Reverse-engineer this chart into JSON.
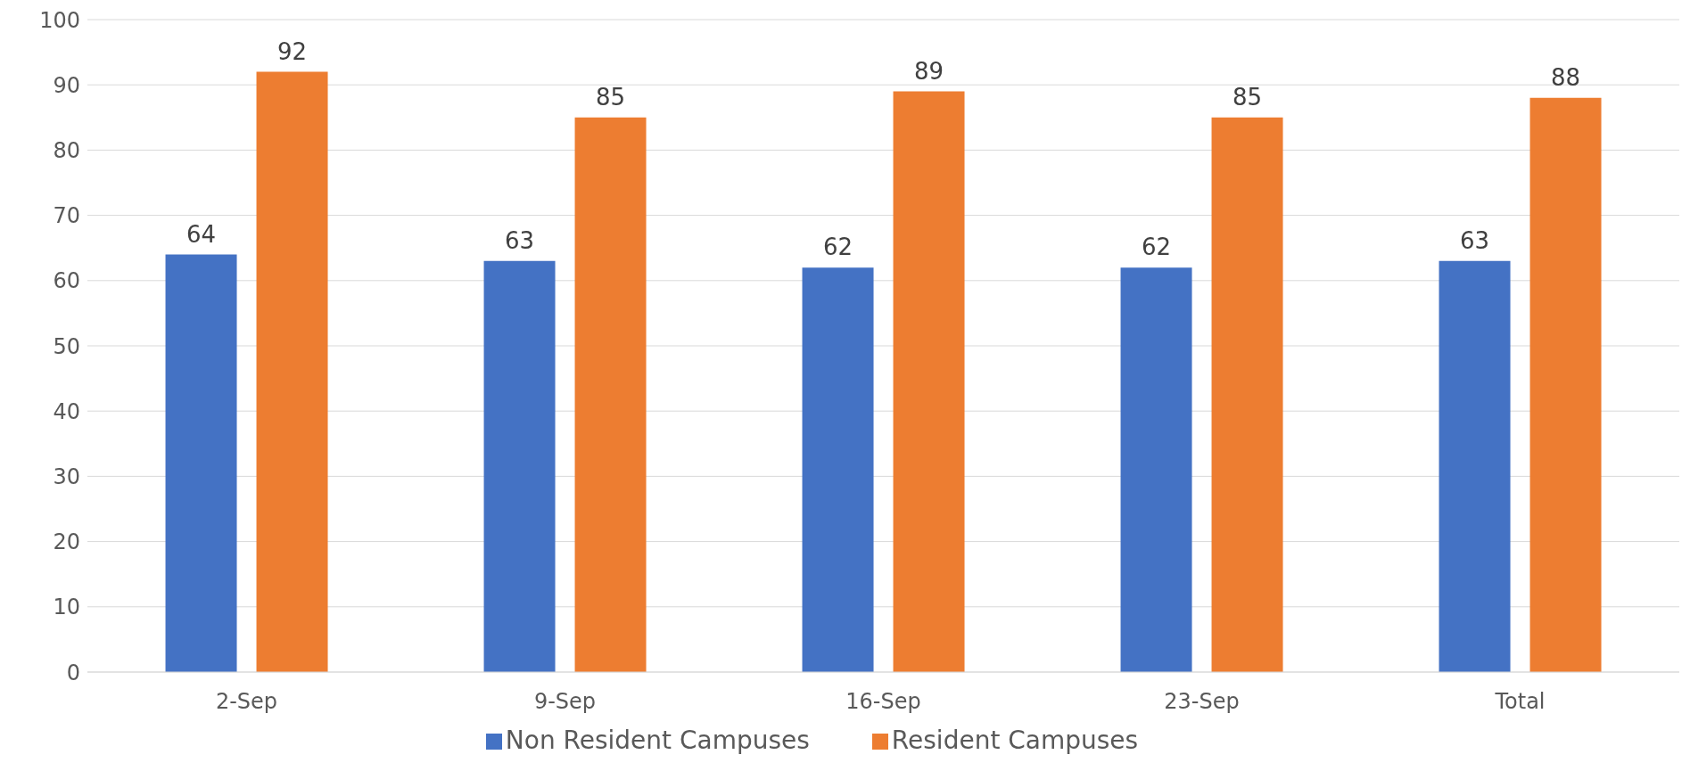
{
  "chart_data": {
    "type": "bar",
    "categories": [
      "2-Sep",
      "9-Sep",
      "16-Sep",
      "23-Sep",
      "Total"
    ],
    "series": [
      {
        "name": "Non Resident Campuses",
        "color": "#4472c4",
        "values": [
          64,
          63,
          62,
          62,
          63
        ]
      },
      {
        "name": "Resident Campuses",
        "color": "#ed7d31",
        "values": [
          92,
          85,
          89,
          85,
          88
        ]
      }
    ],
    "ylim": [
      0,
      100
    ],
    "yticks": [
      0,
      10,
      20,
      30,
      40,
      50,
      60,
      70,
      80,
      90,
      100
    ],
    "grid": "y",
    "legend": "bottom",
    "data_labels": true
  }
}
